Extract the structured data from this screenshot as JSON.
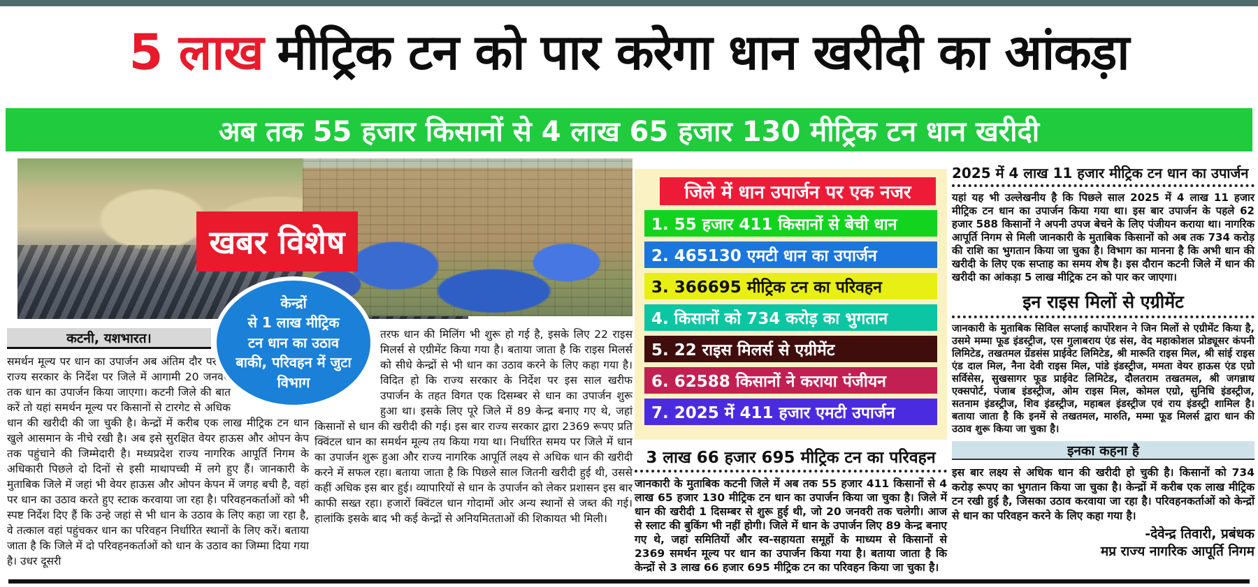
{
  "page": {
    "top_bar_color": "#4e6c6e",
    "bottom_rule_color": "#111111"
  },
  "headline": {
    "highlight": "5 लाख",
    "highlight_color": "#e81a2b",
    "text": "मीट्रिक टन को पार करेगा धान खरीदी का आंकड़ा"
  },
  "subheadline": {
    "text": "अब तक 55 हजार किसानों से 4 लाख 65 हजार 130 मीट्रिक टन धान खरीदी",
    "bg": "#20cb3e"
  },
  "photo_overlays": {
    "badge": "खबर विशेष",
    "badge_bg": "#e81a2b",
    "circle_note": "केन्द्रों\nसे 1 लाख मीट्रिक\nटन धान का उठाव\nबाकी, परिवहन में जुटा\nविभाग",
    "circle_bg": "#1a80d8"
  },
  "left_column": {
    "byline": "कटनी, यशभारत।",
    "body": "समर्थन मूल्य पर धान का उपार्जन अब अंतिम दौर पर है। राज्य सरकार के निर्देश पर जिले में आगामी 20 जनवरी तक धान का उपार्जन किया जाएगा। कटनी जिले की बात करें तो यहां समर्थन मूल्य पर किसानों से टारगेट से अधिक धान की खरीदी की जा चुकी है। केन्द्रों में करीब एक लाख मीट्रिक टन धान खुले आसमान के नीचे रखी है। अब इसे सुरक्षित वेयर हाऊस और ओपन केप तक पहुंचाने की जिम्मेदारी है। मध्यप्रदेश राज्य नागरिक आपूर्ति निगम के अधिकारी पिछले दो दिनों से इसी माथापच्ची में लगे हुए हैं। जानकारी के मुताबिक जिले में जहां भी वेयर हाऊस और ओपन केपन में जगह बची है, वहां पर धान का उठाव करते हुए स्टाक करवाया जा रहा है। परिवहनकर्ताओं को भी स्पष्ट निर्देश दिए हैं कि उन्हे जहां से भी धान के उठाव के लिए कहा जा रहा है, वे तत्काल वहां पहुंचकर धान का परिवहन निर्धारित स्थानों के लिए करें। बताया जाता है कि जिले में दो परिवहनकर्ताओं को धान के उठाव का जिम्मा दिया गया है। उधर दूसरी"
  },
  "middle_column": {
    "body": "तरफ धान की मिलिंग भी शुरू हो गई है, इसके लिए 22 राइस मिलर्स से एग्रीमेंट किया गया है। बताया जाता है कि राइस मिलर्स को सीधे केन्द्रों से भी धान का उठाव करने के लिए कहा गया है। विदित हो कि राज्य सरकार के निर्देश पर इस साल खरीफ उपार्जन के तहत विगत एक दिसम्बर से धान का उपार्जन शुरू हुआ था। इसके लिए पूरे जिले में 89 केन्द्र बनाए गए थे, जहां किसानों से धान की खरीदी की गई। इस बार राज्य सरकार द्वारा 2369 रूपए प्रति क्विंटल धान का समर्थन मूल्य तय किया गया था। निर्धारित समय पर जिले में धान का उपार्जन शुरू हुआ और राज्य नागरिक आपूर्ति लक्ष्य से अधिक धान की खरीदी करने में सफल रहा। बताया जाता है कि पिछले साल जितनी खरीदी हुई थी, उससे कहीं अधिक इस बार हुई। व्यापारियों से धान के उपार्जन को लेकर प्रशासन इस बार काफी सख्त रहा। हजारों क्विंटल धान गोदामों ओर अन्य स्थानों से जब्त की गई। हालांकि इसके बाद भी कई केन्द्रों से अनियमितताओं की शिकायत भी मिली।"
  },
  "stats": {
    "panel_bg": "#fbf2c3",
    "title": "जिले में धान उपार्जन पर एक नजर",
    "title_bg": "#ee1b38",
    "title_fg": "#ffffff",
    "items": [
      {
        "label": "1. 55 हजार 411 किसानों से बेची धान",
        "bg": "#12d41f",
        "fg": "#ffffff"
      },
      {
        "label": "2. 465130 एमटी धान का उपार्जन",
        "bg": "#1b76dd",
        "fg": "#ffffff"
      },
      {
        "label": "3. 366695 मीट्रिक टन का परिवहन",
        "bg": "#e8f013",
        "fg": "#111111"
      },
      {
        "label": "4. किसानों को 734 करोड़ का भुगतान",
        "bg": "#0cc5a3",
        "fg": "#ffffff"
      },
      {
        "label": "5. 22 राइस मिलर्स से एग्रीमेंट",
        "bg": "#400d0d",
        "fg": "#ffffff"
      },
      {
        "label": "6. 62588 किसानों ने कराया पंजीयन",
        "bg": "#c22052",
        "fg": "#ffffff"
      },
      {
        "label": "7. 2025 में 411 हजार एमटी उपार्जन",
        "bg": "#4b2be0",
        "fg": "#ffffff"
      }
    ]
  },
  "transport_section": {
    "heading": "3 लाख 66 हजार 695 मीट्रिक टन का परिवहन",
    "body": "जानकारी के मुताबिक कटनी जिले में अब तक 55 हजार 411 किसानों से 4 लाख 65 हजार 130 मीट्रिक टन धान का उपार्जन किया जा चुका है। जिले में धान की खरीदी 1 दिसम्बर से शुरू हुई थी, जो 20 जनवरी तक चलेगी। आज से स्लाट की बुकिंग भी नहीं होगी। जिले में धान के उपार्जन लिए 89 केन्द्र बनाए गए थे, जहां समितियों और स्व-सहायता समूहों के माध्यम से किसानों से 2369 समर्थन मूल्य पर धान का उपार्जन किया गया है। बताया जाता है कि केन्द्रों से 3 लाख 66 हजार 695 मीट्रिक टन का परिवहन किया जा चुका है।"
  },
  "right_column": {
    "section1": {
      "heading": "2025 में 4 लाख 11 हजार मीट्रिक टन धान का उपार्जन",
      "body": "यहां यह भी उल्लेखनीय है कि पिछले साल 2025 में 4 लाख 11 हजार मीट्रिक टन धान का उपार्जन किया गया था। इस बार उपार्जन के पहले 62 हजार 588 किसानों ने अपनी उपज बेचने के लिए पंजीयन कराया था। नागरिक आपूर्ति निगम से मिली जानकारी के मुताबिक किसानों को अब तक 734 करोड़ की राशि का भुगतान किया जा चुका है। विभाग का मानना है कि अभी धान की खरीदी के लिए एक सप्ताह का समय शेष है। इस दौरान कटनी जिले में धान की खरीदी का आंकड़ा 5 लाख मीट्रिक टन को पार कर जाएगा।"
    },
    "section2": {
      "heading": "इन राइस मिलों से एग्रीमेंट",
      "body": "जानकारी के मुताबिक सिविल सप्लाई कार्पोरेशन ने जिन मिलों से एग्रीमेंट किया है, उसमे मम्मा फूड इंडस्ट्रीज, एस गुलाबराय एंड संस, वेद महाकोशल प्रोड्यूसर कंपनी लिमिटेड, तखतमल ग्रेंडसंस प्राईवेट लिमिटेड, श्री मारूति राइस मिल, श्री सांई राइस एंड दाल मिल, नैना देवी राइस मिल, पांडे इंडस्ट्रीज, ममता वेयर हाऊस एंड एग्रो सर्विसेस, सुखसागर फूड प्राईवेट लिमिटेड, दौलतराम तखतमल, श्री जगन्नाथ एक्सपोर्ट, पंजाब इंडस्ट्रीज, ओम राइस मिल, कोमल एग्रो, सुनिधि इंडस्ट्रीज, सतनाम इंडस्ट्रीज, शिव इंडस्ट्रीज, महाबल इंडस्ट्रीज एवं राय इंडस्ट्री शामिल है। बताया जाता है कि इनमें से तखतमल, मारुति, मम्मा फूड मिलर्स द्वारा धान की उठाव शुरू किया जा चुका है।"
    },
    "quote": {
      "heading": "इनका कहना है",
      "heading_bg": "#cfe2ea",
      "body": "इस बार लक्ष्य से अधिक धान की खरीदी हो चुकी है। किसानों को 734 करोड़ रूपए का भुगतान किया जा चुका है। केन्द्रों में करीब एक लाख मीट्रिक टन रखी हुई है, जिसका उठाव करवाया जा रहा है। परिवहनकर्ताओं को केन्द्रों से धान का परिवहन करने के लिए कहा गया है।",
      "signature": "-देवेन्द्र तिवारी, प्रबंधक\nमप्र राज्य नागरिक आपूर्ति निगम"
    }
  }
}
